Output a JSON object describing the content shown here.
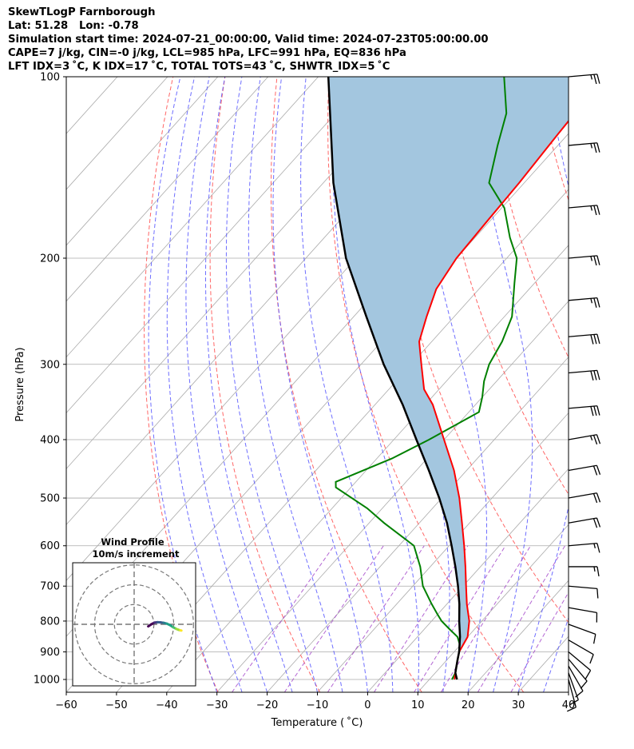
{
  "header": {
    "title": "SkewTLogP Farnborough",
    "location": "Lat: 51.28   Lon: -0.78",
    "times": "Simulation start time: 2024-07-21_00:00:00, Valid time: 2024-07-23T05:00:00.00",
    "indices_1": "CAPE=7 j/kg, CIN=-0 j/kg, LCL=985 hPa, LFC=991 hPa, EQ=836 hPa",
    "indices_2": "LFT IDX=3 ˚C, K IDX=17 ˚C, TOTAL TOTS=43 ˚C, SHWTR_IDX=5 ˚C"
  },
  "chart_data": {
    "type": "skewt-logp",
    "xlabel": "Temperature ( ˚C)",
    "ylabel": "Pressure (hPa)",
    "xlim": [
      -60,
      40
    ],
    "ylim": [
      1050,
      100
    ],
    "x_ticks": [
      "−60",
      "−50",
      "−40",
      "−30",
      "−20",
      "−10",
      "0",
      "10",
      "20",
      "30",
      "40"
    ],
    "y_ticks": [
      "100",
      "200",
      "300",
      "400",
      "500",
      "600",
      "700",
      "800",
      "900",
      "1000"
    ],
    "y_tick_values": [
      100,
      200,
      300,
      400,
      500,
      600,
      700,
      800,
      900,
      1000
    ],
    "grid": true,
    "colors": {
      "temperature": "#ff0000",
      "dewpoint": "#008000",
      "parcel": "#000000",
      "cape_fill": "#a3c6df",
      "dry_adiabat": "#ff5555",
      "moist_adiabat": "#5555ff",
      "mixing_ratio": "#a040c8",
      "isotherm": "#aaaaaa"
    },
    "temperature": {
      "p": [
        1000,
        975,
        950,
        925,
        900,
        850,
        800,
        750,
        700,
        650,
        600,
        550,
        500,
        450,
        400,
        350,
        330,
        300,
        275,
        250,
        225,
        200,
        175,
        150,
        125,
        100
      ],
      "t": [
        15.0,
        14.0,
        13.0,
        12.0,
        11.0,
        10.0,
        7.5,
        4.0,
        0.6,
        -3.0,
        -7.0,
        -11.5,
        -16.5,
        -22.5,
        -30.0,
        -38.5,
        -43.0,
        -48.0,
        -52.5,
        -55.5,
        -58.5,
        -60.0,
        -60.5,
        -61.0,
        -62.0,
        -63.0
      ]
    },
    "dewpoint": {
      "p": [
        1000,
        975,
        950,
        925,
        900,
        875,
        850,
        825,
        800,
        780,
        750,
        700,
        650,
        600,
        550,
        520,
        480,
        470,
        430,
        400,
        360,
        340,
        320,
        300,
        275,
        250,
        220,
        200,
        185,
        165,
        150,
        130,
        115,
        100
      ],
      "t": [
        14.5,
        14.0,
        13.0,
        12.0,
        11.0,
        9.8,
        8.0,
        5.0,
        2.0,
        0.0,
        -3.0,
        -8.0,
        -12.0,
        -17.0,
        -27.0,
        -33.0,
        -43.0,
        -44.0,
        -37.0,
        -33.0,
        -28.0,
        -30.0,
        -32.5,
        -34.5,
        -36.0,
        -38.5,
        -44.0,
        -48.0,
        -53.0,
        -59.5,
        -67.0,
        -72.0,
        -76.0,
        -83.0
      ]
    },
    "parcel": {
      "p": [
        1000,
        975,
        950,
        925,
        900,
        850,
        800,
        750,
        700,
        650,
        600,
        550,
        500,
        450,
        400,
        350,
        300,
        250,
        200,
        150,
        100
      ],
      "t": [
        15.5,
        14.0,
        13.0,
        12.0,
        11.0,
        8.5,
        5.5,
        2.5,
        -1.0,
        -5.0,
        -9.5,
        -14.5,
        -20.5,
        -27.5,
        -35.5,
        -44.5,
        -55.5,
        -67.5,
        -82.0,
        -98.0,
        -118.0
      ]
    },
    "barbs": {
      "p": [
        100,
        130,
        165,
        200,
        235,
        270,
        310,
        355,
        400,
        450,
        500,
        550,
        600,
        650,
        700,
        760,
        810,
        860,
        900,
        925,
        950,
        975,
        1000
      ],
      "speed_kt": [
        25,
        25,
        25,
        25,
        25,
        30,
        30,
        30,
        25,
        20,
        20,
        20,
        15,
        15,
        10,
        10,
        10,
        10,
        10,
        10,
        10,
        10,
        10
      ],
      "dir_deg": [
        265,
        265,
        265,
        265,
        265,
        265,
        265,
        265,
        260,
        260,
        260,
        260,
        265,
        270,
        275,
        280,
        290,
        300,
        310,
        320,
        330,
        340,
        345
      ]
    },
    "inset": {
      "title_1": "Wind Profile",
      "title_2": "10m/s increment",
      "hodograph_u": [
        1.0,
        2.5,
        4.0,
        5.5,
        7.0,
        8.5,
        10.0,
        11.5,
        13.0,
        14.5,
        15.5,
        16.5,
        17.0
      ],
      "hodograph_v": [
        -1.0,
        0.0,
        0.8,
        1.0,
        0.9,
        0.7,
        0.3,
        -0.4,
        -1.4,
        -2.2,
        -2.6,
        -2.9,
        -3.0
      ]
    }
  }
}
